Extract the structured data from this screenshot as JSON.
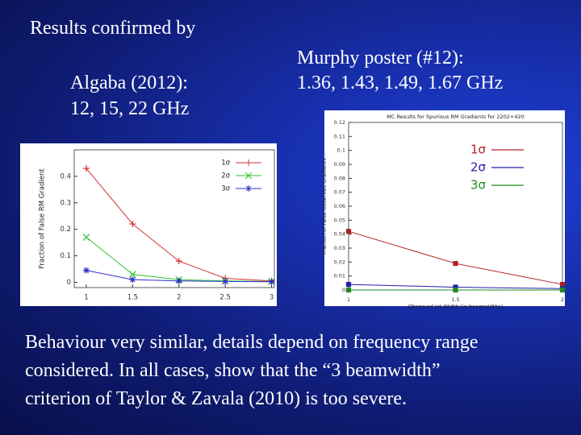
{
  "slide": {
    "heading": "Results confirmed by",
    "left_caption": [
      "Algaba (2012):",
      "12, 15, 22 GHz"
    ],
    "right_caption": [
      "Murphy poster (#12):",
      "1.36, 1.43, 1.49, 1.67 GHz"
    ],
    "body": [
      "Behaviour very similar, details depend on frequency range",
      "considered. In all cases, show that the “3 beamwidth”",
      "criterion of Taylor & Zavala (2010) is too severe."
    ]
  },
  "chart_data": [
    {
      "type": "line",
      "y_label": "Fraction of False RM Gradient",
      "x": [
        1,
        1.5,
        2,
        2.5,
        3
      ],
      "xlim": [
        0.87,
        3.03
      ],
      "xticks": [
        1,
        1.5,
        2,
        2.5,
        3
      ],
      "ylim": [
        -0.02,
        0.5
      ],
      "yticks": [
        0,
        0.1,
        0.2,
        0.3,
        0.4
      ],
      "legend": "upper right",
      "series": [
        {
          "name": "1σ",
          "color": "#d03030",
          "marker": "plus",
          "values": [
            0.43,
            0.22,
            0.08,
            0.015,
            0.005
          ]
        },
        {
          "name": "2σ",
          "color": "#30c030",
          "marker": "cross",
          "values": [
            0.17,
            0.03,
            0.01,
            0.005,
            0.003
          ]
        },
        {
          "name": "3σ",
          "color": "#3030c8",
          "marker": "star",
          "values": [
            0.045,
            0.01,
            0.005,
            0.003,
            0.002
          ]
        }
      ]
    },
    {
      "type": "line",
      "title": "MC Results for Spurious RM Gradients for 2202+420",
      "x_label": "Observed Jet Width (in beamwidths)",
      "y_label": "Fraction of False Observed Gradients",
      "x": [
        1,
        1.5,
        2
      ],
      "xlim": [
        1,
        2
      ],
      "xticks": [
        1,
        1.5,
        2
      ],
      "ylim": [
        0,
        0.12
      ],
      "yticks": [
        0,
        0.01,
        0.02,
        0.03,
        0.04,
        0.05,
        0.06,
        0.07,
        0.08,
        0.09,
        0.1,
        0.11,
        0.12
      ],
      "legend": "upper right",
      "series": [
        {
          "name": "1σ",
          "color": "#b02020",
          "marker": "square",
          "values": [
            0.042,
            0.019,
            0.004
          ]
        },
        {
          "name": "2σ",
          "color": "#2020a8",
          "marker": "square",
          "values": [
            0.004,
            0.002,
            0.001
          ]
        },
        {
          "name": "3σ",
          "color": "#208a20",
          "marker": "square",
          "values": [
            0,
            0,
            0
          ]
        }
      ]
    }
  ]
}
